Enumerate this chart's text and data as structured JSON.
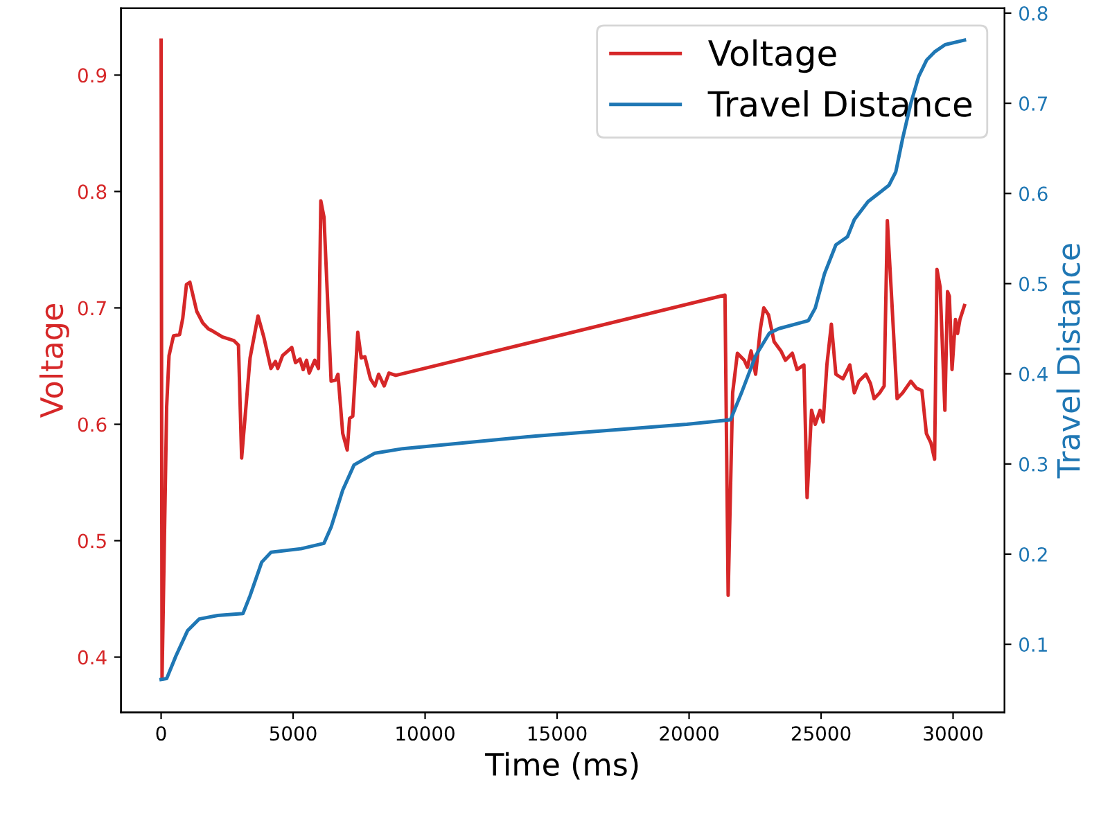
{
  "chart_data": {
    "type": "line",
    "xlabel": "Time (ms)",
    "ylabel": "Voltage",
    "y2label": "Travel Distance",
    "xlim": [
      -1520,
      31950
    ],
    "xticks": [
      0,
      5000,
      10000,
      15000,
      20000,
      25000,
      30000
    ],
    "ylim": [
      0.3525,
      0.9575
    ],
    "yticks": [
      0.4,
      0.5,
      0.6,
      0.7,
      0.8,
      0.9
    ],
    "y2lim": [
      0.0245,
      0.8055
    ],
    "y2ticks": [
      0.1,
      0.2,
      0.3,
      0.4,
      0.5,
      0.6,
      0.7,
      0.8
    ],
    "grid": false,
    "legend": "top right",
    "marker": "none",
    "line_style": "solid",
    "series": [
      {
        "name": "Voltage",
        "color": "#d62728",
        "axis": "y",
        "x": [
          0,
          35,
          210,
          300,
          470,
          700,
          820,
          960,
          1090,
          1350,
          1580,
          1790,
          1960,
          2320,
          2750,
          2930,
          3050,
          3370,
          3670,
          3890,
          4160,
          4330,
          4420,
          4600,
          4950,
          5090,
          5260,
          5380,
          5510,
          5610,
          5820,
          5960,
          6050,
          6170,
          6440,
          6610,
          6700,
          6880,
          7050,
          7140,
          7260,
          7450,
          7580,
          7720,
          7930,
          8100,
          8240,
          8450,
          8630,
          8890,
          21360,
          21480,
          21650,
          21830,
          22090,
          22210,
          22350,
          22520,
          22700,
          22830,
          23010,
          23220,
          23480,
          23650,
          23910,
          24090,
          24350,
          24470,
          24640,
          24780,
          24960,
          25080,
          25220,
          25390,
          25560,
          25830,
          26090,
          26260,
          26430,
          26700,
          26870,
          27010,
          27220,
          27390,
          27510,
          27650,
          27880,
          28090,
          28400,
          28610,
          28820,
          28990,
          29160,
          29300,
          29390,
          29510,
          29690,
          29790,
          29860,
          29960,
          30090,
          30170,
          30260,
          30430
        ],
        "values": [
          0.93,
          0.381,
          0.615,
          0.659,
          0.676,
          0.677,
          0.691,
          0.72,
          0.722,
          0.697,
          0.687,
          0.682,
          0.68,
          0.675,
          0.672,
          0.668,
          0.571,
          0.657,
          0.693,
          0.675,
          0.648,
          0.654,
          0.648,
          0.659,
          0.666,
          0.653,
          0.656,
          0.647,
          0.655,
          0.644,
          0.655,
          0.648,
          0.792,
          0.778,
          0.637,
          0.638,
          0.643,
          0.592,
          0.578,
          0.605,
          0.607,
          0.679,
          0.657,
          0.658,
          0.639,
          0.633,
          0.643,
          0.633,
          0.644,
          0.642,
          0.711,
          0.453,
          0.627,
          0.661,
          0.655,
          0.649,
          0.663,
          0.643,
          0.682,
          0.7,
          0.694,
          0.671,
          0.663,
          0.655,
          0.661,
          0.647,
          0.651,
          0.537,
          0.612,
          0.6,
          0.612,
          0.602,
          0.651,
          0.686,
          0.643,
          0.639,
          0.651,
          0.627,
          0.637,
          0.643,
          0.635,
          0.622,
          0.627,
          0.633,
          0.775,
          0.718,
          0.622,
          0.627,
          0.637,
          0.631,
          0.629,
          0.592,
          0.584,
          0.57,
          0.733,
          0.718,
          0.612,
          0.714,
          0.71,
          0.647,
          0.69,
          0.678,
          0.69,
          0.702
        ]
      },
      {
        "name": "Travel Distance",
        "color": "#1f77b4",
        "axis": "y2",
        "x": [
          0,
          210,
          560,
          1000,
          1440,
          2140,
          3100,
          3370,
          3810,
          4160,
          5300,
          6170,
          6440,
          6880,
          7310,
          8100,
          9160,
          14190,
          19910,
          21570,
          22000,
          22520,
          23040,
          23390,
          24520,
          24780,
          25130,
          25560,
          26000,
          26260,
          26780,
          27220,
          27570,
          27830,
          28090,
          28400,
          28700,
          29000,
          29300,
          29700,
          30430
        ],
        "values": [
          0.061,
          0.062,
          0.087,
          0.115,
          0.128,
          0.132,
          0.134,
          0.154,
          0.191,
          0.202,
          0.206,
          0.212,
          0.23,
          0.271,
          0.299,
          0.312,
          0.317,
          0.331,
          0.344,
          0.349,
          0.38,
          0.42,
          0.445,
          0.45,
          0.459,
          0.473,
          0.511,
          0.543,
          0.552,
          0.571,
          0.591,
          0.601,
          0.609,
          0.624,
          0.661,
          0.7,
          0.73,
          0.748,
          0.757,
          0.765,
          0.77
        ]
      }
    ]
  }
}
